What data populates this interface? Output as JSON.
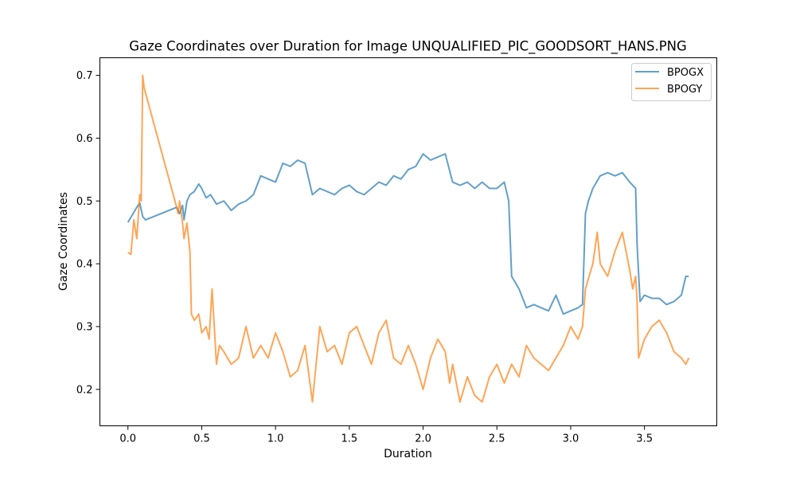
{
  "chart_data": {
    "type": "line",
    "title": "Gaze Coordinates over Duration for Image UNQUALIFIED_PIC_GOODSORT_HANS.PNG",
    "xlabel": "Duration",
    "ylabel": "Gaze Coordinates",
    "xlim": [
      -0.19,
      3.99
    ],
    "ylim": [
      0.142,
      0.728
    ],
    "xticks": [
      0.0,
      0.5,
      1.0,
      1.5,
      2.0,
      2.5,
      3.0,
      3.5
    ],
    "xtick_labels": [
      "0.0",
      "0.5",
      "1.0",
      "1.5",
      "2.0",
      "2.5",
      "3.0",
      "3.5"
    ],
    "yticks": [
      0.2,
      0.3,
      0.4,
      0.5,
      0.6,
      0.7
    ],
    "ytick_labels": [
      "0.2",
      "0.3",
      "0.4",
      "0.5",
      "0.6",
      "0.7"
    ],
    "grid": false,
    "legend_position": "top-right",
    "series": [
      {
        "name": "BPOGX",
        "color": "#1f77b4",
        "x": [
          0.0,
          0.03,
          0.06,
          0.08,
          0.1,
          0.12,
          0.33,
          0.35,
          0.37,
          0.38,
          0.4,
          0.42,
          0.45,
          0.48,
          0.5,
          0.53,
          0.56,
          0.6,
          0.65,
          0.7,
          0.75,
          0.8,
          0.85,
          0.9,
          0.95,
          1.0,
          1.05,
          1.1,
          1.15,
          1.2,
          1.25,
          1.3,
          1.35,
          1.4,
          1.45,
          1.5,
          1.55,
          1.6,
          1.65,
          1.7,
          1.75,
          1.8,
          1.85,
          1.9,
          1.95,
          2.0,
          2.05,
          2.1,
          2.15,
          2.2,
          2.25,
          2.3,
          2.35,
          2.4,
          2.45,
          2.5,
          2.55,
          2.58,
          2.6,
          2.65,
          2.7,
          2.75,
          2.8,
          2.85,
          2.9,
          2.95,
          3.0,
          3.05,
          3.08,
          3.1,
          3.12,
          3.15,
          3.2,
          3.25,
          3.3,
          3.35,
          3.4,
          3.44,
          3.45,
          3.47,
          3.5,
          3.55,
          3.6,
          3.65,
          3.7,
          3.75,
          3.78,
          3.8
        ],
        "y": [
          0.466,
          0.478,
          0.49,
          0.497,
          0.475,
          0.47,
          0.49,
          0.48,
          0.493,
          0.47,
          0.5,
          0.51,
          0.515,
          0.527,
          0.52,
          0.505,
          0.51,
          0.495,
          0.5,
          0.485,
          0.495,
          0.5,
          0.51,
          0.54,
          0.535,
          0.53,
          0.56,
          0.555,
          0.565,
          0.56,
          0.51,
          0.52,
          0.515,
          0.51,
          0.52,
          0.525,
          0.515,
          0.51,
          0.52,
          0.53,
          0.525,
          0.54,
          0.535,
          0.55,
          0.555,
          0.575,
          0.565,
          0.57,
          0.575,
          0.53,
          0.525,
          0.53,
          0.52,
          0.53,
          0.52,
          0.52,
          0.53,
          0.5,
          0.38,
          0.36,
          0.33,
          0.335,
          0.33,
          0.325,
          0.35,
          0.32,
          0.325,
          0.33,
          0.335,
          0.48,
          0.5,
          0.52,
          0.54,
          0.545,
          0.54,
          0.545,
          0.53,
          0.52,
          0.43,
          0.34,
          0.35,
          0.345,
          0.345,
          0.335,
          0.34,
          0.35,
          0.38,
          0.38
        ]
      },
      {
        "name": "BPOGY",
        "color": "#ff7f0e",
        "x": [
          0.0,
          0.02,
          0.04,
          0.06,
          0.08,
          0.09,
          0.1,
          0.11,
          0.33,
          0.34,
          0.35,
          0.37,
          0.38,
          0.4,
          0.42,
          0.43,
          0.45,
          0.48,
          0.5,
          0.53,
          0.55,
          0.57,
          0.6,
          0.62,
          0.65,
          0.7,
          0.75,
          0.8,
          0.85,
          0.9,
          0.95,
          1.0,
          1.05,
          1.1,
          1.15,
          1.2,
          1.25,
          1.3,
          1.35,
          1.4,
          1.45,
          1.5,
          1.55,
          1.6,
          1.65,
          1.7,
          1.75,
          1.8,
          1.85,
          1.9,
          1.95,
          2.0,
          2.05,
          2.1,
          2.15,
          2.18,
          2.2,
          2.25,
          2.3,
          2.35,
          2.4,
          2.45,
          2.5,
          2.55,
          2.6,
          2.65,
          2.7,
          2.75,
          2.8,
          2.85,
          2.9,
          2.95,
          3.0,
          3.05,
          3.08,
          3.1,
          3.15,
          3.18,
          3.2,
          3.25,
          3.3,
          3.35,
          3.4,
          3.42,
          3.44,
          3.45,
          3.46,
          3.5,
          3.55,
          3.6,
          3.65,
          3.7,
          3.75,
          3.78,
          3.8
        ],
        "y": [
          0.418,
          0.415,
          0.47,
          0.44,
          0.51,
          0.5,
          0.7,
          0.68,
          0.49,
          0.48,
          0.5,
          0.465,
          0.44,
          0.465,
          0.42,
          0.32,
          0.31,
          0.32,
          0.29,
          0.3,
          0.28,
          0.36,
          0.24,
          0.27,
          0.26,
          0.24,
          0.25,
          0.3,
          0.25,
          0.27,
          0.25,
          0.29,
          0.26,
          0.22,
          0.23,
          0.27,
          0.18,
          0.3,
          0.26,
          0.27,
          0.24,
          0.29,
          0.3,
          0.27,
          0.24,
          0.29,
          0.31,
          0.25,
          0.24,
          0.27,
          0.24,
          0.2,
          0.25,
          0.28,
          0.26,
          0.21,
          0.24,
          0.18,
          0.22,
          0.19,
          0.18,
          0.22,
          0.24,
          0.21,
          0.24,
          0.22,
          0.27,
          0.25,
          0.24,
          0.23,
          0.25,
          0.27,
          0.3,
          0.28,
          0.3,
          0.36,
          0.4,
          0.45,
          0.4,
          0.38,
          0.42,
          0.45,
          0.39,
          0.36,
          0.38,
          0.34,
          0.25,
          0.28,
          0.3,
          0.31,
          0.29,
          0.26,
          0.25,
          0.24,
          0.25
        ]
      }
    ]
  }
}
